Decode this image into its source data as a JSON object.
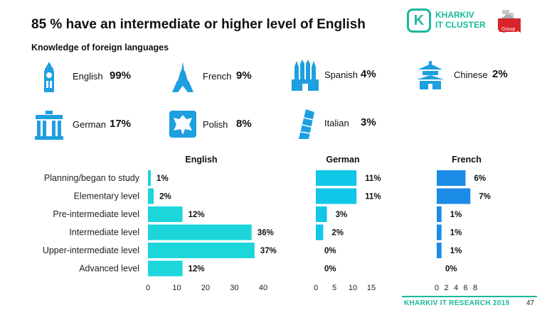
{
  "header": {
    "title": "85 % have an intermediate or higher level of English",
    "subtitle": "Knowledge of foreign languages"
  },
  "logo": {
    "mark": "K",
    "line1": "KHARKIV",
    "line2": "IT CLUSTER",
    "group_label": "Group",
    "accent_color": "#1ab89c",
    "group_color": "#d8242a"
  },
  "languages": [
    {
      "name": "English",
      "pct": "99%",
      "icon": "big-ben-icon"
    },
    {
      "name": "French",
      "pct": "9%",
      "icon": "eiffel-tower-icon"
    },
    {
      "name": "Spanish",
      "pct": "4%",
      "icon": "sagrada-familia-icon"
    },
    {
      "name": "Chinese",
      "pct": "2%",
      "icon": "pagoda-icon"
    },
    {
      "name": "German",
      "pct": "17%",
      "icon": "brandenburg-gate-icon"
    },
    {
      "name": "Polish",
      "pct": "8%",
      "icon": "polish-eagle-icon"
    },
    {
      "name": "Italian",
      "pct": "3%",
      "icon": "leaning-tower-icon"
    }
  ],
  "chart_data": {
    "type": "bar",
    "orientation": "horizontal",
    "categories": [
      "Planning/began to study",
      "Elementary level",
      "Pre-intermediate level",
      "Intermediate level",
      "Upper-intermediate level",
      "Advanced level"
    ],
    "series": [
      {
        "name": "English",
        "values": [
          1,
          2,
          12,
          36,
          37,
          12
        ],
        "labels": [
          "1%",
          "2%",
          "12%",
          "36%",
          "37%",
          "12%"
        ],
        "color": "#1dd6dc",
        "xlim": [
          0,
          40
        ],
        "ticks": [
          "0",
          "10",
          "20",
          "30",
          "40"
        ]
      },
      {
        "name": "German",
        "values": [
          11,
          11,
          3,
          2,
          0,
          0
        ],
        "labels": [
          "11%",
          "11%",
          "3%",
          "2%",
          "0%",
          "0%"
        ],
        "color": "#11c7e8",
        "xlim": [
          0,
          15
        ],
        "ticks": [
          "0",
          "5",
          "10",
          "15"
        ]
      },
      {
        "name": "French",
        "values": [
          6,
          7,
          1,
          1,
          1,
          0
        ],
        "labels": [
          "6%",
          "7%",
          "1%",
          "1%",
          "1%",
          "0%"
        ],
        "color": "#1c8be8",
        "xlim": [
          0,
          8
        ],
        "ticks": [
          "0",
          "2",
          "4",
          "6",
          "8"
        ]
      }
    ],
    "grid": false
  },
  "footer": {
    "text": "KHARKIV IT RESEARCH 2019",
    "page": "47"
  }
}
